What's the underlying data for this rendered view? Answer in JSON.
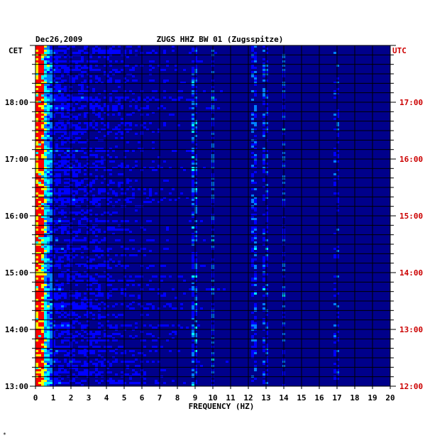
{
  "chart_data": {
    "type": "heatmap",
    "title": "ZUGS HHZ BW 01 (Zugsspitze)",
    "date": "Dec26,2009",
    "xlabel": "FREQUENCY (HZ)",
    "left_axis_label": "CET",
    "right_axis_label": "UTC",
    "xlim": [
      0,
      20
    ],
    "x_ticks": [
      "0",
      "1",
      "2",
      "3",
      "4",
      "5",
      "6",
      "7",
      "8",
      "9",
      "10",
      "11",
      "12",
      "13",
      "14",
      "15",
      "16",
      "17",
      "18",
      "19",
      "20"
    ],
    "y_ticks_cet": [
      "18:00",
      "17:00",
      "16:00",
      "15:00",
      "14:00",
      "13:00"
    ],
    "y_ticks_utc": [
      "17:00",
      "16:00",
      "15:00",
      "14:00",
      "13:00",
      "12:00"
    ],
    "time_range_cet": [
      "13:00",
      "18:48"
    ],
    "grid": true,
    "colormap": [
      "#00008b",
      "#0000ff",
      "#0080ff",
      "#00ffff",
      "#ffff00",
      "#ff0000"
    ],
    "dominant_frequencies_hz": [
      0.3,
      9.0,
      10.0,
      12.3,
      13.0,
      14.0,
      16.9
    ],
    "footer_mark": "*"
  },
  "colors": {
    "background": "#ffffff",
    "utc_label": "#cc0000",
    "cet_label": "#000000",
    "grid": "#000000"
  }
}
